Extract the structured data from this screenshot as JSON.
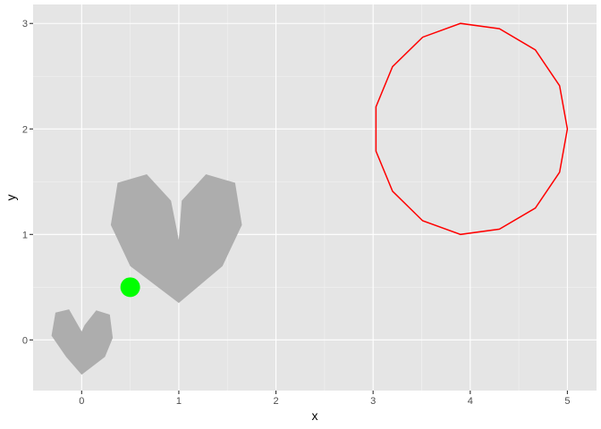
{
  "chart_data": {
    "type": "scatter",
    "title": "",
    "xlabel": "x",
    "ylabel": "y",
    "xlim": [
      -0.5,
      5.3
    ],
    "ylim": [
      -0.48,
      3.18
    ],
    "x_ticks": [
      0,
      1,
      2,
      3,
      4,
      5
    ],
    "y_ticks": [
      0,
      1,
      2,
      3
    ],
    "x_tick_labels": [
      "0",
      "1",
      "2",
      "3",
      "4",
      "5"
    ],
    "y_tick_labels": [
      "0",
      "1",
      "2",
      "3"
    ],
    "grid": true,
    "legend": "none",
    "shapes": [
      {
        "kind": "polygon",
        "fill": "#adadad",
        "points": [
          [
            0,
            -0.33
          ],
          [
            -0.16,
            -0.16
          ],
          [
            -0.31,
            0.04
          ],
          [
            -0.27,
            0.26
          ],
          [
            -0.13,
            0.29
          ],
          [
            0,
            0.08
          ],
          [
            0.03,
            0.14
          ],
          [
            0.15,
            0.28
          ],
          [
            0.29,
            0.24
          ],
          [
            0.32,
            0.02
          ],
          [
            0.24,
            -0.16
          ]
        ]
      },
      {
        "kind": "polygon",
        "fill": "#adadad",
        "points": [
          [
            1.0,
            0.35
          ],
          [
            0.5,
            0.7
          ],
          [
            0.3,
            1.09
          ],
          [
            0.37,
            1.49
          ],
          [
            0.67,
            1.57
          ],
          [
            0.92,
            1.32
          ],
          [
            1.0,
            0.95
          ],
          [
            1.03,
            1.32
          ],
          [
            1.28,
            1.57
          ],
          [
            1.58,
            1.49
          ],
          [
            1.65,
            1.09
          ],
          [
            1.45,
            0.7
          ]
        ]
      },
      {
        "kind": "polygon",
        "fill": "none",
        "stroke": "#ff0000",
        "points": [
          [
            5.0,
            2.0
          ],
          [
            4.92,
            2.41
          ],
          [
            4.67,
            2.75
          ],
          [
            4.3,
            2.95
          ],
          [
            3.9,
            3.0
          ],
          [
            3.51,
            2.87
          ],
          [
            3.2,
            2.59
          ],
          [
            3.03,
            2.21
          ],
          [
            3.03,
            1.79
          ],
          [
            3.2,
            1.41
          ],
          [
            3.51,
            1.13
          ],
          [
            3.9,
            1.0
          ],
          [
            4.3,
            1.05
          ],
          [
            4.67,
            1.25
          ],
          [
            4.92,
            1.59
          ]
        ]
      }
    ],
    "points": [
      {
        "x": 0.5,
        "y": 0.5,
        "color": "#00ff00"
      }
    ]
  }
}
